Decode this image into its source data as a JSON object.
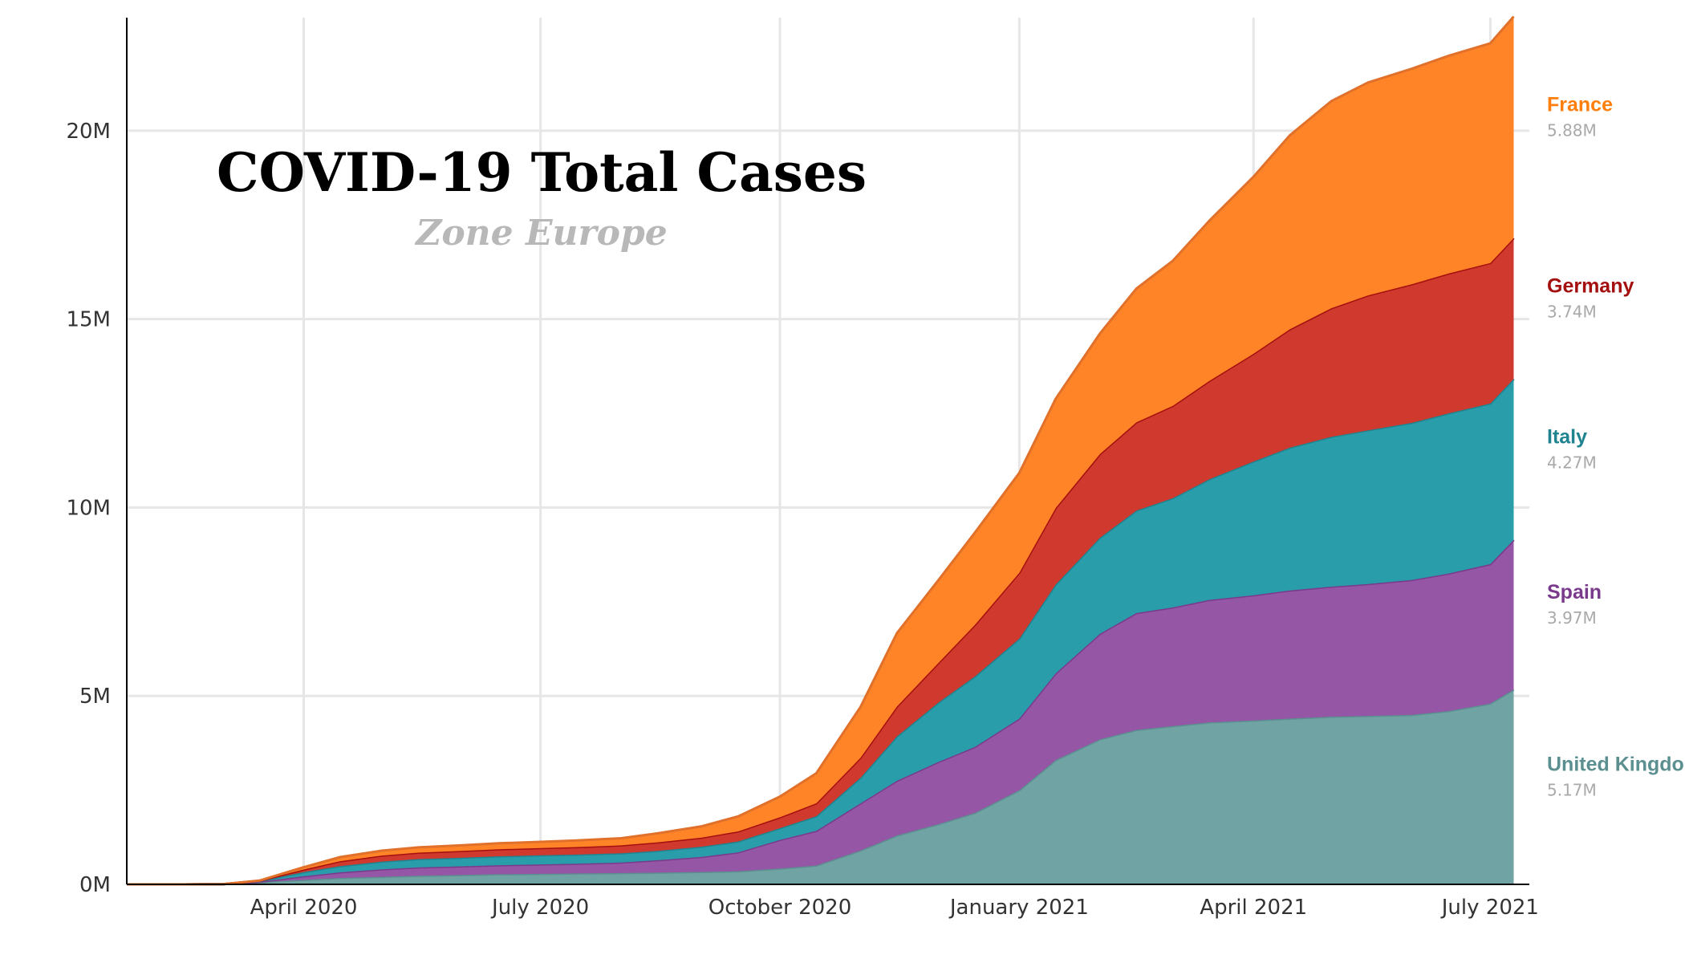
{
  "chart_data": {
    "type": "area",
    "stacked": true,
    "title": "COVID-19 Total Cases",
    "subtitle": "Zone Europe",
    "xlabel": "",
    "ylabel": "",
    "x": [
      "2020-01-24",
      "2020-02-15",
      "2020-03-01",
      "2020-03-15",
      "2020-04-01",
      "2020-04-15",
      "2020-05-01",
      "2020-05-15",
      "2020-06-01",
      "2020-06-15",
      "2020-07-01",
      "2020-07-15",
      "2020-08-01",
      "2020-08-15",
      "2020-09-01",
      "2020-09-15",
      "2020-10-01",
      "2020-10-15",
      "2020-11-01",
      "2020-11-15",
      "2020-12-01",
      "2020-12-15",
      "2021-01-01",
      "2021-01-15",
      "2021-02-01",
      "2021-02-15",
      "2021-03-01",
      "2021-03-15",
      "2021-04-01",
      "2021-04-15",
      "2021-05-01",
      "2021-05-15",
      "2021-06-01",
      "2021-06-15",
      "2021-07-01",
      "2021-07-10"
    ],
    "x_ticks": [
      {
        "date": "2020-04-01",
        "label": "April 2020"
      },
      {
        "date": "2020-07-01",
        "label": "July 2020"
      },
      {
        "date": "2020-10-01",
        "label": "October 2020"
      },
      {
        "date": "2021-01-01",
        "label": "January 2021"
      },
      {
        "date": "2021-04-01",
        "label": "April 2021"
      },
      {
        "date": "2021-07-01",
        "label": "July 2021"
      }
    ],
    "y_ticks": [
      {
        "value": 0,
        "label": "0M"
      },
      {
        "value": 5000000,
        "label": "5M"
      },
      {
        "value": 10000000,
        "label": "10M"
      },
      {
        "value": 15000000,
        "label": "15M"
      },
      {
        "value": 20000000,
        "label": "20M"
      }
    ],
    "xlim": [
      "2020-01-24",
      "2021-07-16"
    ],
    "ylim": [
      0,
      23000000
    ],
    "grid": true,
    "legend_placement": "right",
    "series": [
      {
        "name": "United Kingdom",
        "label_value": "5.17M",
        "color": "#6fa3a4",
        "line": "#5b8f90",
        "values": [
          0,
          0,
          5000,
          60000,
          120000,
          170000,
          200000,
          230000,
          250000,
          270000,
          280000,
          290000,
          300000,
          310000,
          330000,
          350000,
          420000,
          500000,
          900000,
          1300000,
          1600000,
          1900000,
          2500000,
          3300000,
          3850000,
          4100000,
          4200000,
          4300000,
          4350000,
          4400000,
          4450000,
          4470000,
          4500000,
          4600000,
          4800000,
          5170000
        ]
      },
      {
        "name": "Spain",
        "label_value": "3.97M",
        "color": "#9556a6",
        "line": "#7a3a8c",
        "values": [
          0,
          0,
          0,
          8000,
          95000,
          150000,
          200000,
          220000,
          230000,
          240000,
          250000,
          260000,
          280000,
          330000,
          400000,
          500000,
          760000,
          920000,
          1250000,
          1450000,
          1650000,
          1750000,
          1900000,
          2300000,
          2800000,
          3100000,
          3150000,
          3250000,
          3320000,
          3400000,
          3450000,
          3500000,
          3580000,
          3650000,
          3700000,
          3970000
        ]
      },
      {
        "name": "Italy",
        "label_value": "4.27M",
        "color": "#2a9daa",
        "line": "#1f8490",
        "values": [
          0,
          0,
          1500,
          22000,
          110000,
          165000,
          205000,
          220000,
          230000,
          235000,
          240000,
          240000,
          246000,
          250000,
          270000,
          290000,
          310000,
          390000,
          680000,
          1180000,
          1580000,
          1870000,
          2120000,
          2360000,
          2550000,
          2720000,
          2900000,
          3200000,
          3550000,
          3790000,
          3980000,
          4080000,
          4170000,
          4250000,
          4260000,
          4270000
        ]
      },
      {
        "name": "Germany",
        "label_value": "3.74M",
        "color": "#d03a2e",
        "line": "#a40f0f",
        "values": [
          0,
          0,
          100,
          5500,
          70000,
          130000,
          160000,
          172000,
          180000,
          188000,
          194000,
          201000,
          209000,
          225000,
          242000,
          265000,
          290000,
          340000,
          530000,
          790000,
          1050000,
          1370000,
          1750000,
          2030000,
          2220000,
          2340000,
          2450000,
          2610000,
          2860000,
          3140000,
          3410000,
          3580000,
          3680000,
          3710000,
          3730000,
          3740000
        ]
      },
      {
        "name": "France",
        "label_value": "5.88M",
        "color": "#ff8428",
        "line": "#e0702a",
        "values": [
          0,
          0,
          130,
          5000,
          60000,
          110000,
          130000,
          140000,
          150000,
          158000,
          165000,
          175000,
          190000,
          240000,
          300000,
          400000,
          550000,
          800000,
          1350000,
          1950000,
          2200000,
          2450000,
          2650000,
          2900000,
          3200000,
          3550000,
          3850000,
          4250000,
          4700000,
          5150000,
          5500000,
          5650000,
          5720000,
          5780000,
          5830000,
          5880000
        ]
      }
    ]
  }
}
